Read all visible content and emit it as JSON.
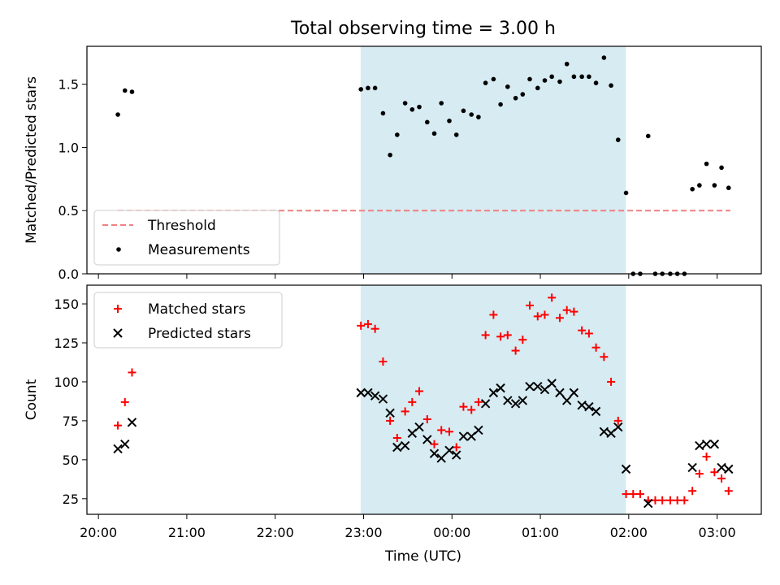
{
  "figure": {
    "title": "Total observing time = 3.00 h",
    "xlabel": "Time (UTC)",
    "shaded_region": {
      "start_hours": 22.967,
      "end_hours": 25.967,
      "color": "#add8e6"
    }
  },
  "chart_data": [
    {
      "type": "scatter",
      "ylabel": "Matched/Predicted stars",
      "ylim": [
        0,
        1.8
      ],
      "yticks": [
        "0.0",
        "0.5",
        "1.0",
        "1.5"
      ],
      "legend": {
        "placement": "lower-left",
        "entries": [
          "Threshold",
          "Measurements"
        ]
      },
      "threshold": {
        "name": "Threshold",
        "value": 0.5,
        "x_start": 20.22,
        "x_end": 27.15,
        "color": "#f08080"
      },
      "series": [
        {
          "name": "Measurements",
          "color": "#000000",
          "x": [
            20.22,
            20.3,
            20.38,
            22.97,
            23.05,
            23.13,
            23.22,
            23.3,
            23.38,
            23.47,
            23.55,
            23.63,
            23.72,
            23.8,
            23.88,
            23.97,
            24.05,
            24.13,
            24.22,
            24.3,
            24.38,
            24.47,
            24.55,
            24.63,
            24.72,
            24.8,
            24.88,
            24.97,
            25.05,
            25.13,
            25.22,
            25.3,
            25.38,
            25.47,
            25.55,
            25.63,
            25.72,
            25.8,
            25.88,
            25.97,
            26.05,
            26.13,
            26.22,
            26.3,
            26.38,
            26.47,
            26.55,
            26.63,
            26.72,
            26.8,
            26.88,
            26.97,
            27.05,
            27.13
          ],
          "y": [
            1.26,
            1.45,
            1.44,
            1.46,
            1.47,
            1.47,
            1.27,
            0.94,
            1.1,
            1.35,
            1.3,
            1.32,
            1.2,
            1.11,
            1.35,
            1.21,
            1.1,
            1.29,
            1.26,
            1.24,
            1.51,
            1.54,
            1.34,
            1.48,
            1.39,
            1.42,
            1.54,
            1.47,
            1.53,
            1.56,
            1.52,
            1.66,
            1.56,
            1.56,
            1.56,
            1.51,
            1.71,
            1.49,
            1.06,
            0.64,
            0.0,
            0.0,
            1.09,
            0.0,
            0.0,
            0.0,
            0.0,
            0.0,
            0.67,
            0.7,
            0.87,
            0.7,
            0.84,
            0.68
          ]
        }
      ]
    },
    {
      "type": "scatter",
      "ylabel": "Count",
      "ylim": [
        15,
        162
      ],
      "yticks": [
        "25",
        "50",
        "75",
        "100",
        "125",
        "150"
      ],
      "xticks": [
        "20:00",
        "21:00",
        "22:00",
        "23:00",
        "00:00",
        "01:00",
        "02:00",
        "03:00"
      ],
      "xlim_hours": [
        19.87,
        27.5
      ],
      "legend": {
        "placement": "upper-left",
        "entries": [
          "Matched stars",
          "Predicted stars"
        ]
      },
      "series": [
        {
          "name": "Matched stars",
          "marker": "plus",
          "color": "#ff0000",
          "x": [
            20.22,
            20.3,
            20.38,
            22.97,
            23.05,
            23.13,
            23.22,
            23.3,
            23.38,
            23.47,
            23.55,
            23.63,
            23.72,
            23.8,
            23.88,
            23.97,
            24.05,
            24.13,
            24.22,
            24.3,
            24.38,
            24.47,
            24.55,
            24.63,
            24.72,
            24.8,
            24.88,
            24.97,
            25.05,
            25.13,
            25.22,
            25.3,
            25.38,
            25.47,
            25.55,
            25.63,
            25.72,
            25.8,
            25.88,
            25.97,
            26.05,
            26.13,
            26.22,
            26.3,
            26.38,
            26.47,
            26.55,
            26.63,
            26.72,
            26.8,
            26.88,
            26.97,
            27.05,
            27.13
          ],
          "y": [
            72,
            87,
            106,
            136,
            137,
            134,
            113,
            75,
            64,
            81,
            87,
            94,
            76,
            60,
            69,
            68,
            58,
            84,
            82,
            87,
            130,
            143,
            129,
            130,
            120,
            127,
            149,
            142,
            143,
            154,
            141,
            146,
            145,
            133,
            131,
            122,
            116,
            100,
            75,
            28,
            28,
            28,
            24,
            24,
            24,
            24,
            24,
            24,
            30,
            41,
            52,
            42,
            38,
            30
          ]
        },
        {
          "name": "Predicted stars",
          "marker": "x",
          "color": "#000000",
          "x": [
            20.22,
            20.3,
            20.38,
            22.97,
            23.05,
            23.13,
            23.22,
            23.3,
            23.38,
            23.47,
            23.55,
            23.63,
            23.72,
            23.8,
            23.88,
            23.97,
            24.05,
            24.13,
            24.22,
            24.3,
            24.38,
            24.47,
            24.55,
            24.63,
            24.72,
            24.8,
            24.88,
            24.97,
            25.05,
            25.13,
            25.22,
            25.3,
            25.38,
            25.47,
            25.55,
            25.63,
            25.72,
            25.8,
            25.88,
            25.97,
            26.22,
            26.72,
            26.8,
            26.88,
            26.97,
            27.05,
            27.13
          ],
          "y": [
            57,
            60,
            74,
            93,
            93,
            91,
            89,
            80,
            58,
            59,
            67,
            71,
            63,
            54,
            51,
            56,
            53,
            65,
            65,
            69,
            86,
            93,
            96,
            88,
            86,
            88,
            97,
            97,
            95,
            99,
            93,
            88,
            93,
            85,
            84,
            81,
            68,
            67,
            71,
            44,
            22,
            45,
            59,
            60,
            60,
            45,
            44
          ]
        }
      ]
    }
  ]
}
